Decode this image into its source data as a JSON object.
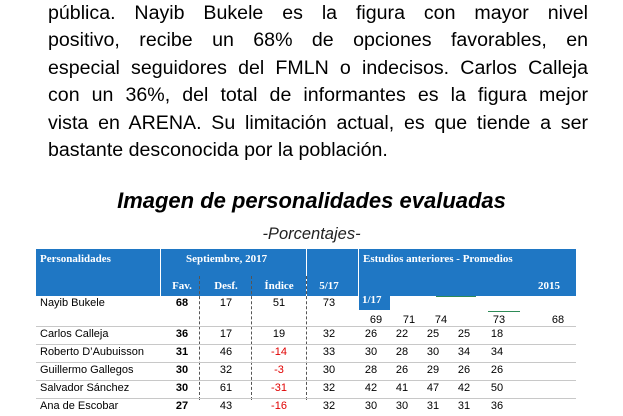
{
  "paragraph": {
    "lines": [
      "pública. Nayib Bukele es la figura con mayor nivel",
      "positivo, recibe un 68% de opciones favorables, en",
      "especial seguidores del FMLN o indecisos. Carlos Calleja",
      "con un 36%,  del total  de informantes es la figura mejor",
      "vista en ARENA. Su limitación actual,  es que  tiende a ser",
      "bastante desconocida por la población."
    ]
  },
  "figure": {
    "title": "Imagen de personalidades evaluadas",
    "subtitle": "-Porcentajes-"
  },
  "table": {
    "header_top": {
      "personalidades": "Personalidades",
      "septiembre": "Septiembre, 2017",
      "estudios": "Estudios anteriores - Promedios"
    },
    "header_bottom": {
      "fav": "Fav.",
      "desf": "Desf.",
      "indice": "Índice",
      "p517": "5/17",
      "year2015": "2015"
    },
    "inline_period": "1/17",
    "rows": [
      {
        "name": "Nayib Bukele",
        "fav": "68",
        "desf": "17",
        "indice": "51",
        "p517": "73",
        "negative": false
      },
      {
        "name": "Carlos Calleja",
        "fav": "36",
        "desf": "17",
        "indice": "19",
        "p517": "32",
        "negative": false,
        "hist": [
          "26",
          "22",
          "25",
          "25",
          "18",
          ""
        ]
      },
      {
        "name": "Roberto D’Aubuisson",
        "fav": "31",
        "desf": "46",
        "indice": "-14",
        "p517": "33",
        "negative": true,
        "hist": [
          "30",
          "28",
          "30",
          "34",
          "34",
          ""
        ]
      },
      {
        "name": "Guillermo Gallegos",
        "fav": "30",
        "desf": "32",
        "indice": "-3",
        "p517": "30",
        "negative": true,
        "hist": [
          "28",
          "26",
          "29",
          "26",
          "26",
          ""
        ]
      },
      {
        "name": "Salvador Sánchez",
        "fav": "30",
        "desf": "61",
        "indice": "-31",
        "p517": "32",
        "negative": true,
        "hist": [
          "42",
          "41",
          "47",
          "42",
          "50",
          ""
        ]
      },
      {
        "name": "Ana de Escobar",
        "fav": "27",
        "desf": "43",
        "indice": "-16",
        "p517": "32",
        "negative": true,
        "hist": [
          "30",
          "30",
          "31",
          "31",
          "36",
          ""
        ]
      }
    ],
    "bukele_hist": [
      "69",
      "71",
      "74",
      "73",
      "68"
    ],
    "colors": {
      "header_bg": "#1f77c4",
      "negative": "#e00000"
    }
  }
}
